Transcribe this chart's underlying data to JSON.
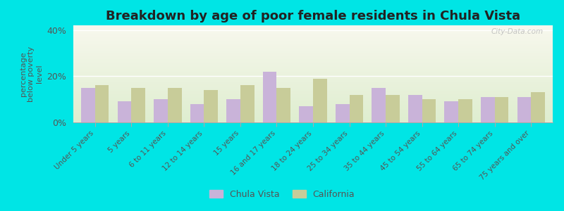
{
  "title": "Breakdown by age of poor female residents in Chula Vista",
  "categories": [
    "Under 5 years",
    "5 years",
    "6 to 11 years",
    "12 to 14 years",
    "15 years",
    "16 and 17 years",
    "18 to 24 years",
    "25 to 34 years",
    "35 to 44 years",
    "45 to 54 years",
    "55 to 64 years",
    "65 to 74 years",
    "75 years and over"
  ],
  "chula_vista": [
    15.0,
    9.0,
    10.0,
    8.0,
    10.0,
    22.0,
    7.0,
    8.0,
    15.0,
    12.0,
    9.0,
    11.0,
    11.0
  ],
  "california": [
    16.0,
    15.0,
    15.0,
    14.0,
    16.0,
    15.0,
    19.0,
    12.0,
    12.0,
    10.0,
    10.0,
    11.0,
    13.0
  ],
  "chula_vista_color": "#c9b3d9",
  "california_color": "#c8cc99",
  "outer_bg": "#00e5e5",
  "ylim": [
    0,
    42
  ],
  "yticks": [
    0,
    20,
    40
  ],
  "ytick_labels": [
    "0%",
    "20%",
    "40%"
  ],
  "ylabel": "percentage\nbelow poverty\nlevel",
  "title_fontsize": 13,
  "axis_color": "#555555",
  "watermark": "City-Data.com"
}
